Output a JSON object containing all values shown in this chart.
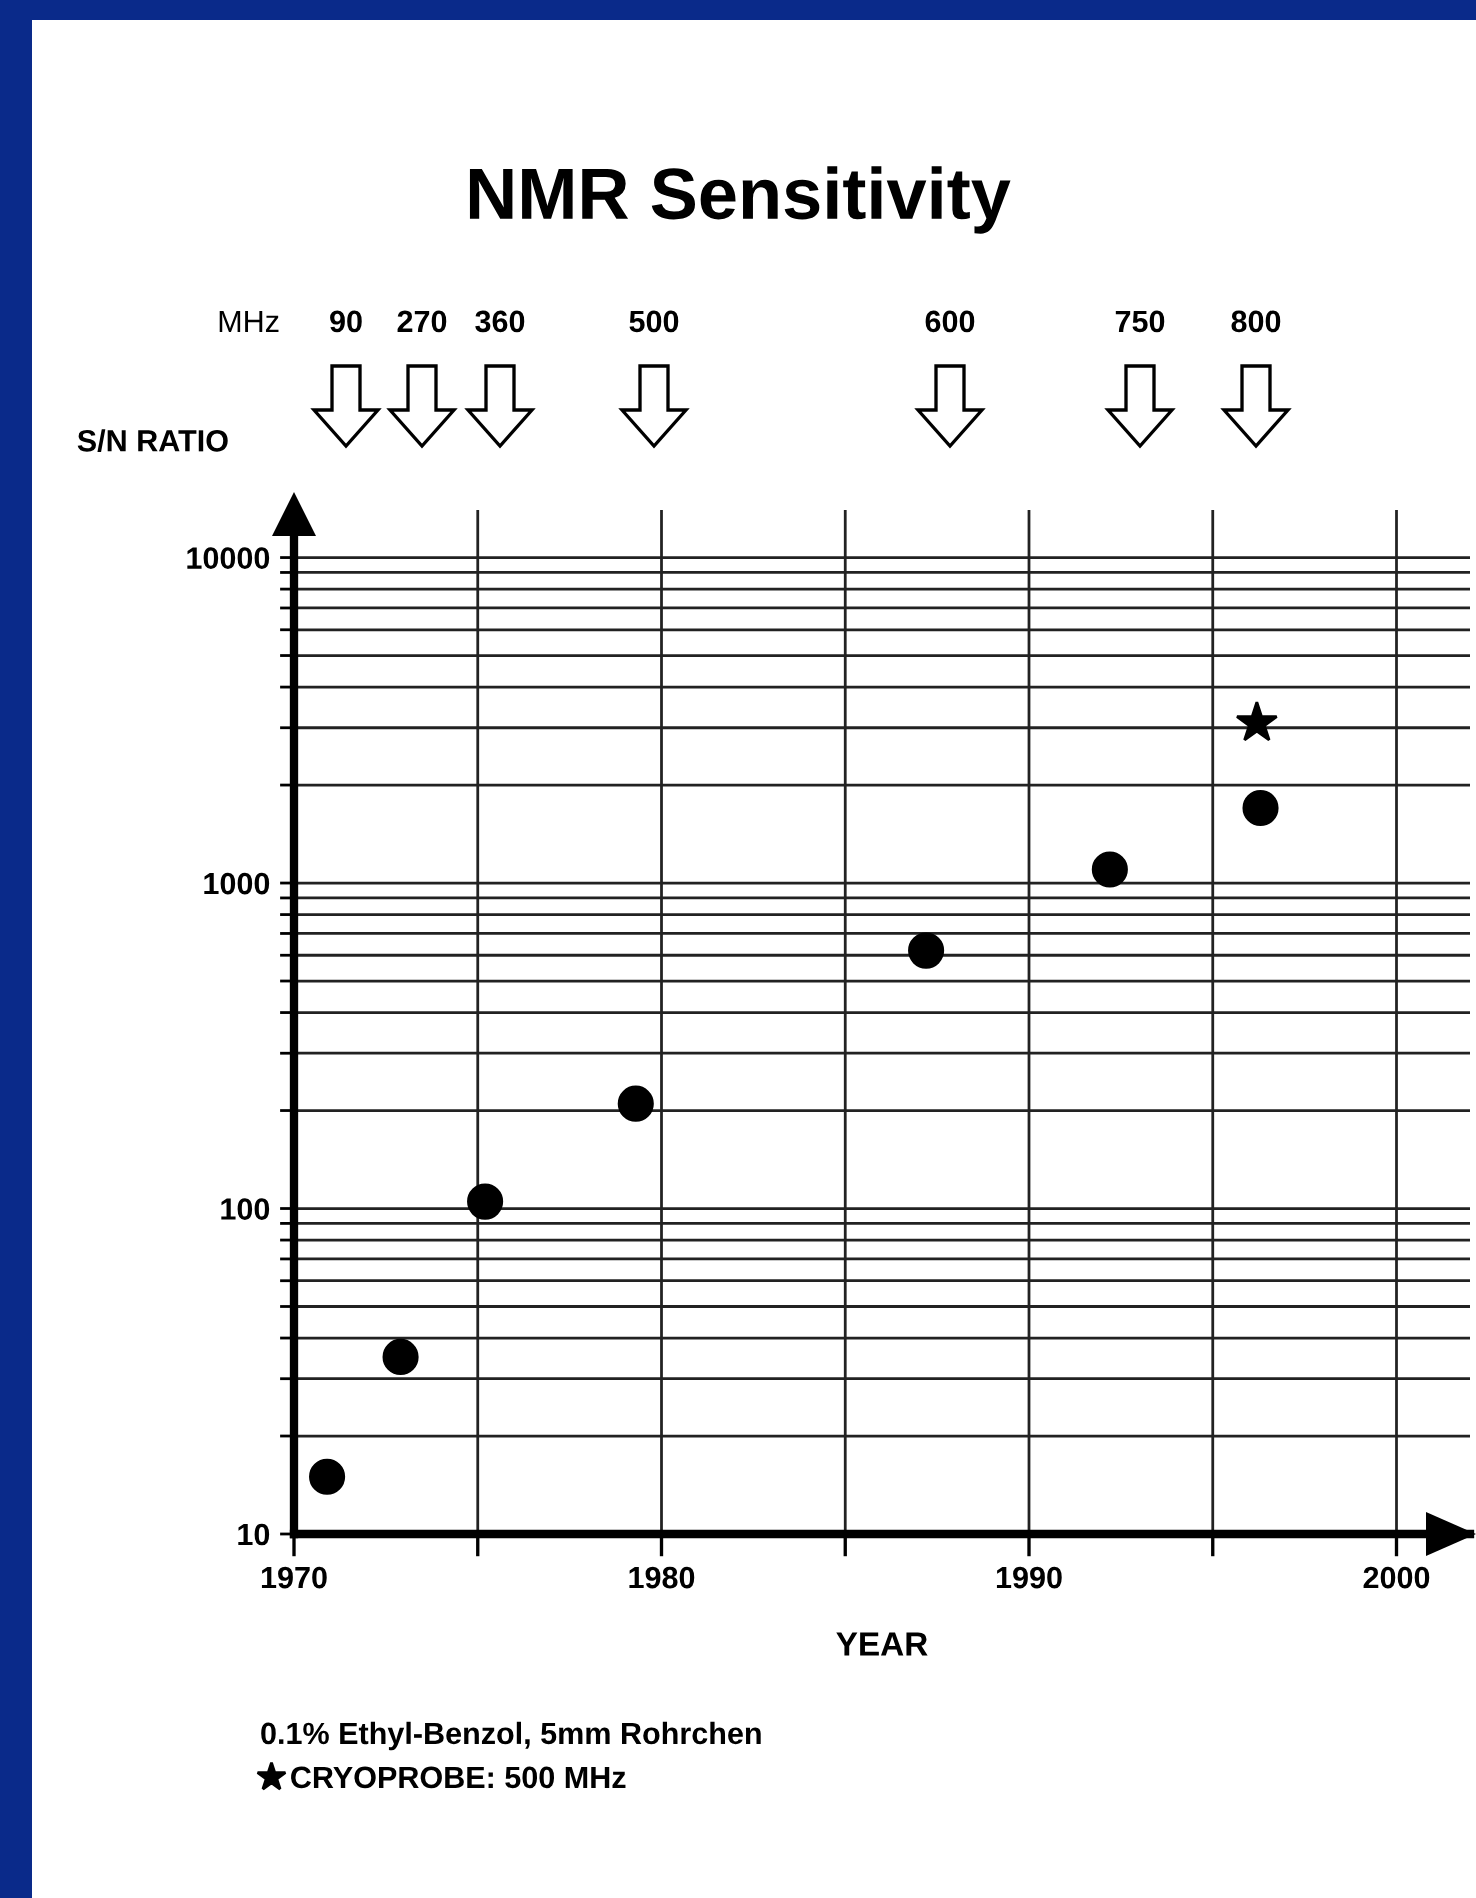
{
  "chart_data": {
    "type": "scatter",
    "title": "NMR Sensitivity",
    "xlabel": "YEAR",
    "ylabel": "S/N RATIO",
    "log": "y",
    "grid": true,
    "legend": "bottom",
    "marker": "circle",
    "xlim": [
      1970,
      2002
    ],
    "xticks": [
      1970,
      {
        "value": 1975,
        "label": null
      },
      1980,
      {
        "value": 1985,
        "label": null
      },
      1990,
      {
        "value": 1995,
        "label": null
      },
      2000
    ],
    "ylim": [
      10,
      14000
    ],
    "yticks": [
      10,
      {
        "value": 20,
        "label": null
      },
      {
        "value": 30,
        "label": null
      },
      {
        "value": 40,
        "label": null
      },
      {
        "value": 50,
        "label": null
      },
      {
        "value": 60,
        "label": null
      },
      {
        "value": 70,
        "label": null
      },
      {
        "value": 80,
        "label": null
      },
      {
        "value": 90,
        "label": null
      },
      100,
      {
        "value": 200,
        "label": null
      },
      {
        "value": 300,
        "label": null
      },
      {
        "value": 400,
        "label": null
      },
      {
        "value": 500,
        "label": null
      },
      {
        "value": 600,
        "label": null
      },
      {
        "value": 700,
        "label": null
      },
      {
        "value": 800,
        "label": null
      },
      {
        "value": 900,
        "label": null
      },
      1000,
      {
        "value": 2000,
        "label": null
      },
      {
        "value": 3000,
        "label": null
      },
      {
        "value": 4000,
        "label": null
      },
      {
        "value": 5000,
        "label": null
      },
      {
        "value": 6000,
        "label": null
      },
      {
        "value": 7000,
        "label": null
      },
      {
        "value": 8000,
        "label": null
      },
      {
        "value": 9000,
        "label": null
      },
      10000
    ],
    "series": [
      {
        "color": "#000000",
        "x": [
          1970.9,
          1972.9,
          1975.2,
          1979.3,
          1987.2,
          1992.2,
          1996.3
        ],
        "values": [
          15,
          35,
          105,
          210,
          620,
          1100,
          1700
        ]
      },
      {
        "name": "CRYOPROBE: 500 MHz",
        "color": "#000000",
        "marker": "star",
        "x": [
          1996.2
        ],
        "values": [
          3100
        ]
      }
    ],
    "annotations": [
      "MHz",
      "90",
      "270",
      "360",
      "500",
      "600",
      "750",
      "800",
      "0.1% Ethyl-Benzol, 5mm Rohrchen"
    ]
  }
}
